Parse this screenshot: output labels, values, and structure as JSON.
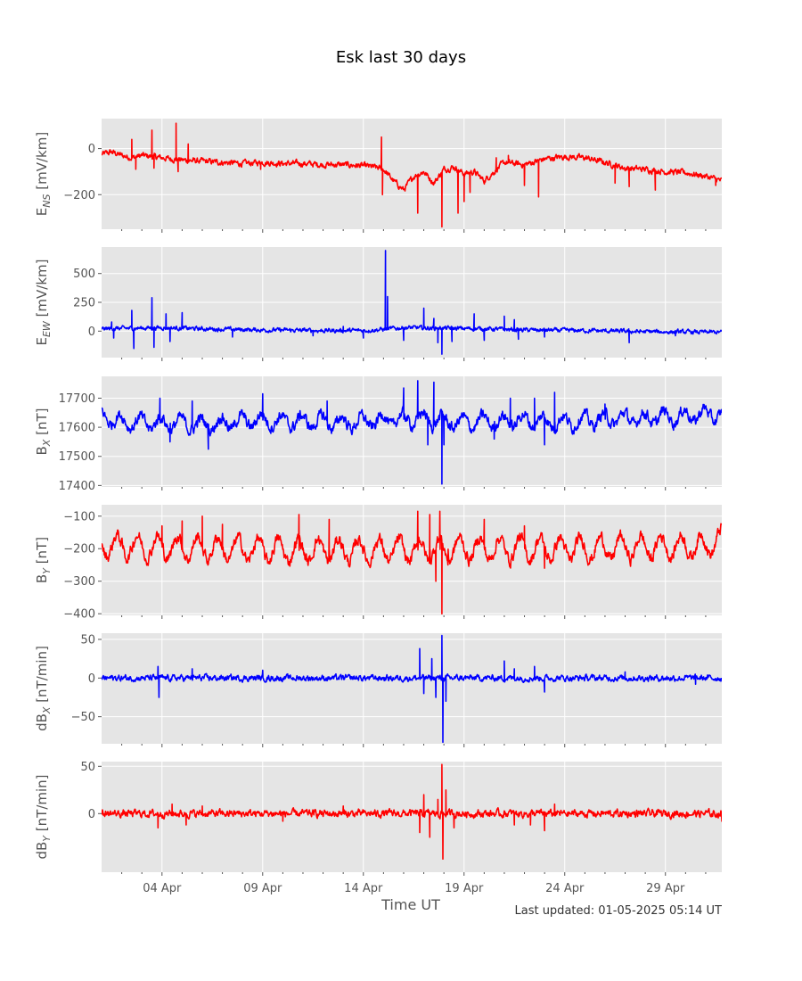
{
  "chart_data": {
    "type": "line",
    "title": "Esk last 30 days",
    "xlabel": "Time UT",
    "footer": "Last updated: 01-05-2025 05:14 UT",
    "x_range": [
      "2025-04-01",
      "2025-05-01"
    ],
    "x_ticks": [
      {
        "date": "2025-04-04",
        "label": "04 Apr"
      },
      {
        "date": "2025-04-09",
        "label": "09 Apr"
      },
      {
        "date": "2025-04-14",
        "label": "14 Apr"
      },
      {
        "date": "2025-04-19",
        "label": "19 Apr"
      },
      {
        "date": "2025-04-24",
        "label": "24 Apr"
      },
      {
        "date": "2025-04-29",
        "label": "29 Apr"
      }
    ],
    "grid": true,
    "panels": [
      {
        "ylabel": {
          "base": "E",
          "sub": "NS",
          "unit": " [mV/km]"
        },
        "color": "#ff0000",
        "ylim": [
          -350,
          130
        ],
        "yticks": [
          {
            "v": 0,
            "label": "0"
          },
          {
            "v": -200,
            "label": "−200"
          }
        ],
        "noise": 10,
        "points": [
          [
            0,
            -25
          ],
          [
            0.5,
            -15
          ],
          [
            1,
            -30
          ],
          [
            1.5,
            -40
          ],
          [
            2,
            -30
          ],
          [
            2.5,
            -35
          ],
          [
            3,
            -40
          ],
          [
            4,
            -50
          ],
          [
            5,
            -55
          ],
          [
            6,
            -60
          ],
          [
            7,
            -65
          ],
          [
            8,
            -60
          ],
          [
            9,
            -65
          ],
          [
            10,
            -65
          ],
          [
            11,
            -70
          ],
          [
            12,
            -70
          ],
          [
            13,
            -75
          ],
          [
            13.5,
            -80
          ],
          [
            14,
            -90
          ],
          [
            14.5,
            -140
          ],
          [
            15,
            -180
          ],
          [
            15.5,
            -120
          ],
          [
            16,
            -100
          ],
          [
            16.5,
            -150
          ],
          [
            17,
            -90
          ],
          [
            17.5,
            -80
          ],
          [
            18,
            -110
          ],
          [
            18.5,
            -100
          ],
          [
            19,
            -140
          ],
          [
            19.5,
            -100
          ],
          [
            20,
            -60
          ],
          [
            21,
            -70
          ],
          [
            22,
            -45
          ],
          [
            23,
            -35
          ],
          [
            24,
            -40
          ],
          [
            25,
            -60
          ],
          [
            26,
            -85
          ],
          [
            27,
            -90
          ],
          [
            28,
            -100
          ],
          [
            29,
            -105
          ],
          [
            30,
            -120
          ],
          [
            30.8,
            -140
          ]
        ],
        "spikes": [
          [
            1.5,
            40
          ],
          [
            1.7,
            -90
          ],
          [
            2.5,
            80
          ],
          [
            2.6,
            -85
          ],
          [
            3.7,
            110
          ],
          [
            3.8,
            -100
          ],
          [
            4.3,
            20
          ],
          [
            7.9,
            -90
          ],
          [
            13.9,
            50
          ],
          [
            13.95,
            -200
          ],
          [
            15.7,
            -280
          ],
          [
            16.9,
            -340
          ],
          [
            17.7,
            -280
          ],
          [
            18,
            -230
          ],
          [
            18.3,
            -190
          ],
          [
            19.6,
            -40
          ],
          [
            20.2,
            -30
          ],
          [
            21,
            -160
          ],
          [
            21.7,
            -210
          ],
          [
            25.5,
            -150
          ],
          [
            26.2,
            -165
          ],
          [
            27.5,
            -180
          ],
          [
            30.5,
            -160
          ]
        ]
      },
      {
        "ylabel": {
          "base": "E",
          "sub": "EW",
          "unit": " [mV/km]"
        },
        "color": "#0000ff",
        "ylim": [
          -230,
          730
        ],
        "yticks": [
          {
            "v": 0,
            "label": "0"
          },
          {
            "v": 250,
            "label": "250"
          },
          {
            "v": 500,
            "label": "500"
          }
        ],
        "noise": 14,
        "points": [
          [
            0,
            20
          ],
          [
            3,
            30
          ],
          [
            5,
            20
          ],
          [
            8,
            10
          ],
          [
            11,
            5
          ],
          [
            13,
            5
          ],
          [
            14,
            15
          ],
          [
            15,
            30
          ],
          [
            17,
            25
          ],
          [
            19,
            20
          ],
          [
            21,
            10
          ],
          [
            24,
            5
          ],
          [
            27,
            -5
          ],
          [
            30.8,
            -10
          ]
        ],
        "spikes": [
          [
            0.5,
            80
          ],
          [
            0.6,
            -60
          ],
          [
            1.5,
            180
          ],
          [
            1.6,
            -150
          ],
          [
            2.5,
            290
          ],
          [
            2.6,
            -140
          ],
          [
            3.2,
            150
          ],
          [
            3.4,
            -90
          ],
          [
            4,
            160
          ],
          [
            6.5,
            -50
          ],
          [
            10.5,
            -40
          ],
          [
            12,
            40
          ],
          [
            13,
            -60
          ],
          [
            14.1,
            700
          ],
          [
            14.2,
            300
          ],
          [
            15,
            -80
          ],
          [
            16,
            200
          ],
          [
            16.5,
            110
          ],
          [
            16.7,
            -100
          ],
          [
            16.9,
            -200
          ],
          [
            17.4,
            -90
          ],
          [
            18.5,
            150
          ],
          [
            19,
            -80
          ],
          [
            20,
            130
          ],
          [
            20.5,
            100
          ],
          [
            20.7,
            -70
          ],
          [
            22,
            -50
          ],
          [
            26.2,
            -100
          ],
          [
            28.5,
            -40
          ]
        ]
      },
      {
        "ylabel": {
          "base": "B",
          "sub": "X",
          "unit": " [nT]"
        },
        "color": "#0000ff",
        "ylim": [
          17395,
          17775
        ],
        "yticks": [
          {
            "v": 17400,
            "label": "17400"
          },
          {
            "v": 17500,
            "label": "17500"
          },
          {
            "v": 17600,
            "label": "17600"
          },
          {
            "v": 17700,
            "label": "17700"
          }
        ],
        "noise": 15,
        "daily_amp": 22,
        "points": [
          [
            0,
            17640
          ],
          [
            1,
            17620
          ],
          [
            2,
            17615
          ],
          [
            3,
            17615
          ],
          [
            4,
            17612
          ],
          [
            5,
            17608
          ],
          [
            6,
            17615
          ],
          [
            7,
            17620
          ],
          [
            8,
            17625
          ],
          [
            9,
            17620
          ],
          [
            10,
            17620
          ],
          [
            11,
            17620
          ],
          [
            12,
            17615
          ],
          [
            13,
            17618
          ],
          [
            14,
            17625
          ],
          [
            15,
            17628
          ],
          [
            16,
            17630
          ],
          [
            17,
            17620
          ],
          [
            18,
            17615
          ],
          [
            19,
            17620
          ],
          [
            20,
            17620
          ],
          [
            21,
            17625
          ],
          [
            22,
            17620
          ],
          [
            23,
            17618
          ],
          [
            24,
            17625
          ],
          [
            25,
            17628
          ],
          [
            26,
            17630
          ],
          [
            27,
            17630
          ],
          [
            28,
            17635
          ],
          [
            29,
            17640
          ],
          [
            30,
            17645
          ],
          [
            30.8,
            17640
          ]
        ],
        "spikes": [
          [
            2.9,
            17700
          ],
          [
            3.4,
            17550
          ],
          [
            4.5,
            17690
          ],
          [
            5.3,
            17525
          ],
          [
            8,
            17715
          ],
          [
            11.2,
            17690
          ],
          [
            15,
            17735
          ],
          [
            15.7,
            17760
          ],
          [
            16.2,
            17540
          ],
          [
            16.5,
            17755
          ],
          [
            16.9,
            17405
          ],
          [
            17,
            17540
          ],
          [
            19.5,
            17560
          ],
          [
            20.3,
            17700
          ],
          [
            21.5,
            17700
          ],
          [
            22,
            17540
          ],
          [
            22.5,
            17720
          ],
          [
            25,
            17680
          ]
        ]
      },
      {
        "ylabel": {
          "base": "B",
          "sub": "Y",
          "unit": " [nT]"
        },
        "color": "#ff0000",
        "ylim": [
          -405,
          -65
        ],
        "yticks": [
          {
            "v": -100,
            "label": "−100"
          },
          {
            "v": -200,
            "label": "−200"
          },
          {
            "v": -300,
            "label": "−300"
          },
          {
            "v": -400,
            "label": "−400"
          }
        ],
        "noise": 14,
        "daily_amp": 35,
        "points": [
          [
            0,
            -190
          ],
          [
            3,
            -195
          ],
          [
            6,
            -200
          ],
          [
            9,
            -205
          ],
          [
            12,
            -205
          ],
          [
            15,
            -205
          ],
          [
            18,
            -200
          ],
          [
            21,
            -200
          ],
          [
            24,
            -200
          ],
          [
            27,
            -195
          ],
          [
            30,
            -190
          ],
          [
            30.8,
            -170
          ]
        ],
        "spikes": [
          [
            3,
            -130
          ],
          [
            4,
            -115
          ],
          [
            5,
            -100
          ],
          [
            6,
            -125
          ],
          [
            9.8,
            -95
          ],
          [
            11.3,
            -110
          ],
          [
            15.7,
            -85
          ],
          [
            16.3,
            -95
          ],
          [
            16.8,
            -85
          ],
          [
            16.6,
            -300
          ],
          [
            16.9,
            -400
          ],
          [
            17.2,
            -250
          ],
          [
            19,
            -110
          ],
          [
            21,
            -130
          ],
          [
            22,
            -260
          ]
        ]
      },
      {
        "ylabel": {
          "base": "dB",
          "sub": "X",
          "unit": " [nT/min]"
        },
        "color": "#0000ff",
        "ylim": [
          -85,
          58
        ],
        "yticks": [
          {
            "v": -50,
            "label": "−50"
          },
          {
            "v": 0,
            "label": "0"
          },
          {
            "v": 50,
            "label": "50"
          }
        ],
        "noise": 3,
        "points": [
          [
            0,
            0
          ],
          [
            30.8,
            0
          ]
        ],
        "spikes": [
          [
            2.8,
            15
          ],
          [
            2.85,
            -25
          ],
          [
            4.5,
            12
          ],
          [
            8,
            10
          ],
          [
            15.8,
            38
          ],
          [
            16,
            -20
          ],
          [
            16.4,
            25
          ],
          [
            16.6,
            -25
          ],
          [
            16.9,
            55
          ],
          [
            16.95,
            -83
          ],
          [
            17.1,
            -30
          ],
          [
            20,
            22
          ],
          [
            20.5,
            12
          ],
          [
            21.5,
            15
          ],
          [
            22,
            -18
          ],
          [
            26,
            8
          ],
          [
            29.5,
            -8
          ]
        ]
      },
      {
        "ylabel": {
          "base": "dB",
          "sub": "Y",
          "unit": " [nT/min]"
        },
        "color": "#ff0000",
        "ylim": [
          -62,
          55
        ],
        "yticks": [
          {
            "v": 0,
            "label": "0"
          },
          {
            "v": 50,
            "label": "50"
          }
        ],
        "noise": 3,
        "points": [
          [
            0,
            0
          ],
          [
            30.8,
            0
          ]
        ],
        "spikes": [
          [
            2.8,
            -15
          ],
          [
            3.5,
            10
          ],
          [
            4.2,
            -12
          ],
          [
            5,
            8
          ],
          [
            9,
            -8
          ],
          [
            12,
            8
          ],
          [
            15.8,
            -20
          ],
          [
            16,
            20
          ],
          [
            16.3,
            -25
          ],
          [
            16.7,
            15
          ],
          [
            16.9,
            52
          ],
          [
            16.95,
            -48
          ],
          [
            17.1,
            25
          ],
          [
            17.5,
            -15
          ],
          [
            20.5,
            -12
          ],
          [
            21.3,
            -12
          ],
          [
            22,
            -18
          ],
          [
            22.5,
            10
          ],
          [
            30.8,
            -8
          ]
        ]
      }
    ]
  }
}
